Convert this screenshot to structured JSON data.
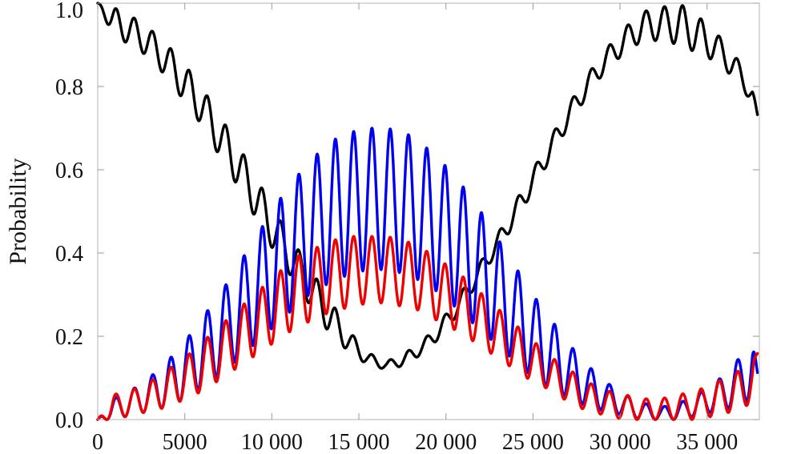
{
  "chart_data": {
    "type": "line",
    "title": "",
    "xlabel": "",
    "ylabel": "Probability",
    "xlim": [
      0,
      38000
    ],
    "ylim": [
      0,
      1
    ],
    "x_ticks": [
      0,
      5000,
      10000,
      15000,
      20000,
      25000,
      30000,
      35000
    ],
    "x_tick_labels": [
      "0",
      "5000",
      "10 000",
      "15 000",
      "20 000",
      "25 000",
      "30 000",
      "35 000"
    ],
    "y_ticks": [
      0,
      0.2,
      0.4,
      0.6,
      0.8,
      1.0
    ],
    "y_tick_labels": [
      "0.0",
      "0.2",
      "0.4",
      "0.6",
      "0.8",
      "1.0"
    ],
    "grid": false,
    "legend": "none",
    "series": [
      {
        "color": "#000000",
        "x": [
          0,
          900,
          1900,
          2950,
          4000,
          5050,
          6100,
          7150,
          8200,
          9250,
          10300,
          11350,
          12400,
          13450,
          14500,
          15550,
          16600,
          17650,
          18700,
          19750,
          20800,
          21850,
          22900,
          23950,
          25000,
          26050,
          27100,
          28150,
          29200,
          30250,
          31300,
          32350,
          33400,
          34450,
          35500,
          36550,
          37600,
          37900
        ],
        "y": [
          1.0,
          0.99,
          0.97,
          0.94,
          0.9,
          0.85,
          0.79,
          0.72,
          0.65,
          0.57,
          0.49,
          0.42,
          0.35,
          0.28,
          0.21,
          0.16,
          0.14,
          0.16,
          0.19,
          0.24,
          0.3,
          0.37,
          0.44,
          0.52,
          0.6,
          0.68,
          0.76,
          0.83,
          0.89,
          0.94,
          0.98,
          0.99,
          1.0,
          0.97,
          0.93,
          0.88,
          0.8,
          0.73
        ],
        "y_min": [
          1.0,
          0.92,
          0.9,
          0.87,
          0.82,
          0.76,
          0.7,
          0.62,
          0.55,
          0.47,
          0.39,
          0.33,
          0.26,
          0.2,
          0.16,
          0.13,
          0.12,
          0.13,
          0.16,
          0.2,
          0.26,
          0.33,
          0.4,
          0.47,
          0.55,
          0.63,
          0.71,
          0.78,
          0.84,
          0.88,
          0.91,
          0.91,
          0.9,
          0.88,
          0.86,
          0.82,
          0.76,
          0.73
        ]
      },
      {
        "color": "#0000ee",
        "x": [
          0,
          900,
          1900,
          2950,
          4000,
          5050,
          6100,
          7150,
          8200,
          9250,
          10300,
          11350,
          12400,
          13450,
          14500,
          15550,
          16600,
          17650,
          18700,
          19750,
          20800,
          21850,
          22900,
          23950,
          25000,
          26050,
          27100,
          28150,
          29200,
          30250,
          31300,
          32350,
          33400,
          34450,
          35500,
          36550,
          37600,
          37900
        ],
        "y": [
          0.0,
          0.05,
          0.07,
          0.1,
          0.14,
          0.19,
          0.25,
          0.31,
          0.38,
          0.45,
          0.52,
          0.58,
          0.63,
          0.67,
          0.69,
          0.7,
          0.7,
          0.69,
          0.66,
          0.62,
          0.57,
          0.51,
          0.44,
          0.37,
          0.3,
          0.24,
          0.18,
          0.13,
          0.09,
          0.06,
          0.04,
          0.03,
          0.04,
          0.06,
          0.09,
          0.13,
          0.2,
          0.11
        ],
        "y_min": [
          0.0,
          0.0,
          0.01,
          0.02,
          0.03,
          0.05,
          0.08,
          0.11,
          0.15,
          0.19,
          0.23,
          0.27,
          0.31,
          0.33,
          0.35,
          0.36,
          0.36,
          0.35,
          0.33,
          0.3,
          0.26,
          0.22,
          0.18,
          0.14,
          0.1,
          0.07,
          0.05,
          0.03,
          0.02,
          0.01,
          0.0,
          0.0,
          0.0,
          0.01,
          0.02,
          0.03,
          0.05,
          0.11
        ]
      },
      {
        "color": "#ee0000",
        "x": [
          0,
          900,
          1900,
          2950,
          4000,
          5050,
          6100,
          7150,
          8200,
          9250,
          10300,
          11350,
          12400,
          13450,
          14500,
          15550,
          16600,
          17650,
          18700,
          19750,
          20800,
          21850,
          22900,
          23950,
          25000,
          26050,
          27100,
          28150,
          29200,
          30250,
          31300,
          32350,
          33400,
          34450,
          35500,
          36550,
          37600,
          37900
        ],
        "y": [
          0.0,
          0.06,
          0.07,
          0.09,
          0.12,
          0.15,
          0.19,
          0.23,
          0.27,
          0.31,
          0.35,
          0.39,
          0.41,
          0.43,
          0.44,
          0.44,
          0.44,
          0.43,
          0.41,
          0.38,
          0.35,
          0.31,
          0.27,
          0.23,
          0.19,
          0.15,
          0.12,
          0.09,
          0.07,
          0.06,
          0.05,
          0.05,
          0.06,
          0.07,
          0.09,
          0.11,
          0.14,
          0.16
        ],
        "y_min": [
          0.0,
          0.0,
          0.01,
          0.02,
          0.03,
          0.05,
          0.07,
          0.1,
          0.13,
          0.16,
          0.19,
          0.22,
          0.24,
          0.26,
          0.27,
          0.28,
          0.28,
          0.27,
          0.26,
          0.23,
          0.21,
          0.18,
          0.15,
          0.12,
          0.09,
          0.07,
          0.04,
          0.02,
          0.01,
          0.0,
          0.0,
          0.0,
          0.0,
          0.0,
          0.01,
          0.02,
          0.04,
          0.16
        ]
      }
    ]
  }
}
